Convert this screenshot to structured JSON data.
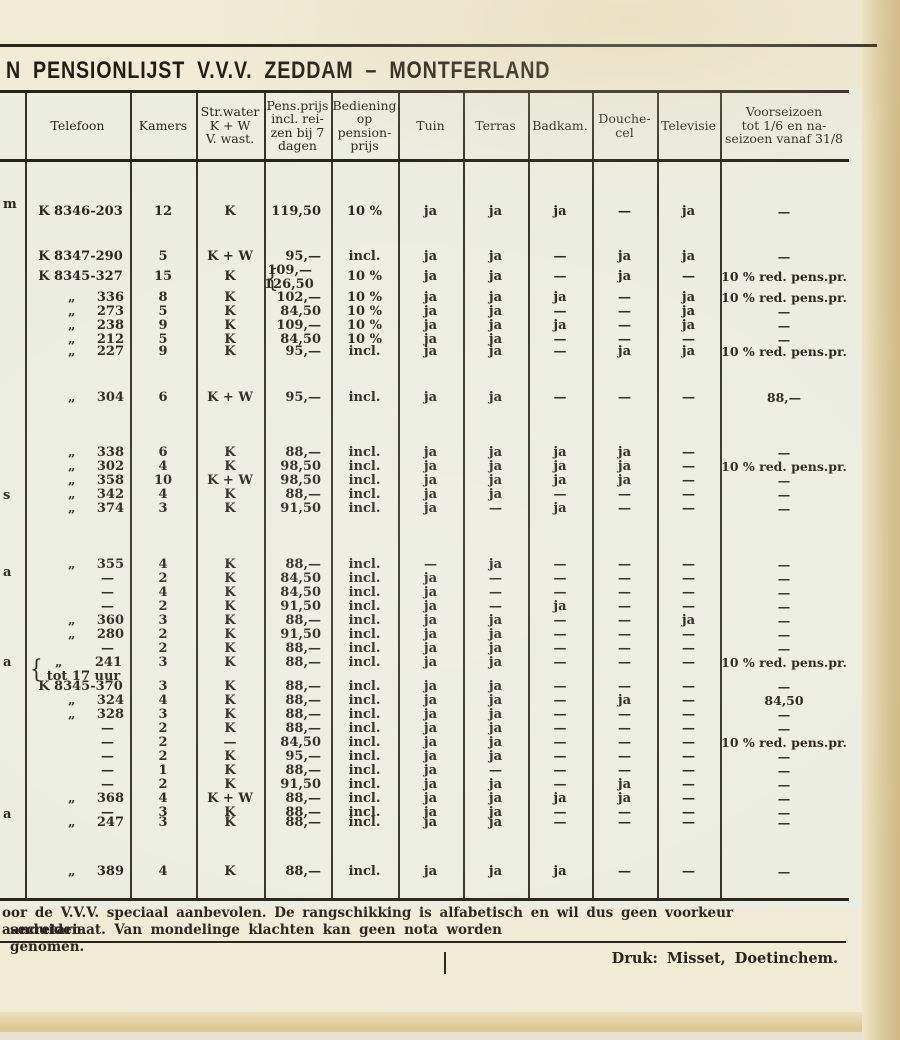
{
  "page": {
    "title": "N PENSIONLIJST V.V.V. ZEDDAM – MONTFERLAND",
    "footer_lines": [
      "oor de V.V.V. speciaal aanbevolen. De rangschikking is alfabetisch en wil dus geen voorkeur aanduiden.",
      "secretariaat. Van mondelinge klachten kan geen nota worden genomen."
    ],
    "printer_credit": "Druk: Misset, Doetinchem.",
    "left_margin_fragments": [
      "m",
      "s",
      "a",
      "a",
      "a"
    ]
  },
  "colors": {
    "ink": "#2a2620",
    "paper": "#f1ebd6",
    "table_background": "#ecede1",
    "page_edge_tan": "#d9c494"
  },
  "table": {
    "columns": [
      {
        "key": "tel",
        "label": "Telefoon"
      },
      {
        "key": "kamers",
        "label": "Kamers"
      },
      {
        "key": "water",
        "label": "Str.water\nK + W\nV. wast."
      },
      {
        "key": "prijs",
        "label": "Pens.prijs\nincl. rei-\nzen bij 7\ndagen"
      },
      {
        "key": "bediening",
        "label": "Bediening\nop\npension-\nprijs"
      },
      {
        "key": "tuin",
        "label": "Tuin"
      },
      {
        "key": "terras",
        "label": "Terras"
      },
      {
        "key": "badkam",
        "label": "Badkam."
      },
      {
        "key": "douche",
        "label": "Douche-\ncel"
      },
      {
        "key": "tv",
        "label": "Televisie"
      },
      {
        "key": "voorseizoen",
        "label": "Voorseizoen\ntot 1/6 en na-\nseizoen vanaf 31/8"
      }
    ],
    "rows": [
      {
        "tel": "K 8346-203",
        "kamers": "12",
        "water": "K",
        "prijs": "119,50",
        "bediening": "10 %",
        "tuin": "ja",
        "terras": "ja",
        "badkam": "ja",
        "douche": "—",
        "tv": "ja",
        "voorseizoen": "—"
      },
      {
        "tel": "K 8347-290",
        "kamers": "5",
        "water": "K + W",
        "prijs": "95,—",
        "bediening": "incl.",
        "tuin": "ja",
        "terras": "ja",
        "badkam": "—",
        "douche": "ja",
        "tv": "ja",
        "voorseizoen": "—"
      },
      {
        "tel": "K 8345-327",
        "kamers": "15",
        "water": "K",
        "prijs": "109,—\n126,50",
        "bediening": "10 %",
        "tuin": "ja",
        "terras": "ja",
        "badkam": "—",
        "douche": "ja",
        "tv": "—",
        "voorseizoen": "10 % red. pens.pr."
      },
      {
        "tel": "„ 336",
        "kamers": "8",
        "water": "K",
        "prijs": "102,—",
        "bediening": "10 %",
        "tuin": "ja",
        "terras": "ja",
        "badkam": "ja",
        "douche": "—",
        "tv": "ja",
        "voorseizoen": "10 % red. pens.pr."
      },
      {
        "tel": "„ 273",
        "kamers": "5",
        "water": "K",
        "prijs": "84,50",
        "bediening": "10 %",
        "tuin": "ja",
        "terras": "ja",
        "badkam": "—",
        "douche": "—",
        "tv": "ja",
        "voorseizoen": "—"
      },
      {
        "tel": "„ 238",
        "kamers": "9",
        "water": "K",
        "prijs": "109,—",
        "bediening": "10 %",
        "tuin": "ja",
        "terras": "ja",
        "badkam": "ja",
        "douche": "—",
        "tv": "ja",
        "voorseizoen": "—"
      },
      {
        "tel": "„ 212",
        "kamers": "5",
        "water": "K",
        "prijs": "84,50",
        "bediening": "10 %",
        "tuin": "ja",
        "terras": "ja",
        "badkam": "—",
        "douche": "—",
        "tv": "—",
        "voorseizoen": "—"
      },
      {
        "tel": "„ 227",
        "kamers": "9",
        "water": "K",
        "prijs": "95,—",
        "bediening": "incl.",
        "tuin": "ja",
        "terras": "ja",
        "badkam": "—",
        "douche": "ja",
        "tv": "ja",
        "voorseizoen": "10 % red. pens.pr."
      },
      {
        "tel": "„ 304",
        "kamers": "6",
        "water": "K + W",
        "prijs": "95,—",
        "bediening": "incl.",
        "tuin": "ja",
        "terras": "ja",
        "badkam": "—",
        "douche": "—",
        "tv": "—",
        "voorseizoen": "88,—"
      },
      {
        "tel": "„ 338",
        "kamers": "6",
        "water": "K",
        "prijs": "88,—",
        "bediening": "incl.",
        "tuin": "ja",
        "terras": "ja",
        "badkam": "ja",
        "douche": "ja",
        "tv": "—",
        "voorseizoen": "—"
      },
      {
        "tel": "„ 302",
        "kamers": "4",
        "water": "K",
        "prijs": "98,50",
        "bediening": "incl.",
        "tuin": "ja",
        "terras": "ja",
        "badkam": "ja",
        "douche": "ja",
        "tv": "—",
        "voorseizoen": "10 % red. pens.pr."
      },
      {
        "tel": "„ 358",
        "kamers": "10",
        "water": "K + W",
        "prijs": "98,50",
        "bediening": "incl.",
        "tuin": "ja",
        "terras": "ja",
        "badkam": "ja",
        "douche": "ja",
        "tv": "—",
        "voorseizoen": "—"
      },
      {
        "tel": "„ 342",
        "kamers": "4",
        "water": "K",
        "prijs": "88,—",
        "bediening": "incl.",
        "tuin": "ja",
        "terras": "ja",
        "badkam": "—",
        "douche": "—",
        "tv": "—",
        "voorseizoen": "—"
      },
      {
        "tel": "„ 374",
        "kamers": "3",
        "water": "K",
        "prijs": "91,50",
        "bediening": "incl.",
        "tuin": "ja",
        "terras": "—",
        "badkam": "ja",
        "douche": "—",
        "tv": "—",
        "voorseizoen": "—"
      },
      {
        "tel": "„ 355",
        "kamers": "4",
        "water": "K",
        "prijs": "88,—",
        "bediening": "incl.",
        "tuin": "—",
        "terras": "ja",
        "badkam": "—",
        "douche": "—",
        "tv": "—",
        "voorseizoen": "—"
      },
      {
        "tel": "—",
        "kamers": "2",
        "water": "K",
        "prijs": "84,50",
        "bediening": "incl.",
        "tuin": "ja",
        "terras": "—",
        "badkam": "—",
        "douche": "—",
        "tv": "—",
        "voorseizoen": "—"
      },
      {
        "tel": "—",
        "kamers": "4",
        "water": "K",
        "prijs": "84,50",
        "bediening": "incl.",
        "tuin": "ja",
        "terras": "—",
        "badkam": "—",
        "douche": "—",
        "tv": "—",
        "voorseizoen": "—"
      },
      {
        "tel": "—",
        "kamers": "2",
        "water": "K",
        "prijs": "91,50",
        "bediening": "incl.",
        "tuin": "ja",
        "terras": "—",
        "badkam": "ja",
        "douche": "—",
        "tv": "—",
        "voorseizoen": "—"
      },
      {
        "tel": "„ 360",
        "kamers": "3",
        "water": "K",
        "prijs": "88,—",
        "bediening": "incl.",
        "tuin": "ja",
        "terras": "ja",
        "badkam": "—",
        "douche": "—",
        "tv": "ja",
        "voorseizoen": "—"
      },
      {
        "tel": "„ 280",
        "kamers": "2",
        "water": "K",
        "prijs": "91,50",
        "bediening": "incl.",
        "tuin": "ja",
        "terras": "ja",
        "badkam": "—",
        "douche": "—",
        "tv": "—",
        "voorseizoen": "—"
      },
      {
        "tel": "—",
        "kamers": "2",
        "water": "K",
        "prijs": "88,—",
        "bediening": "incl.",
        "tuin": "ja",
        "terras": "ja",
        "badkam": "—",
        "douche": "—",
        "tv": "—",
        "voorseizoen": "—"
      },
      {
        "tel": "„ 241\ntot 17 uur",
        "kamers": "3",
        "water": "K",
        "prijs": "88,—",
        "bediening": "incl.",
        "tuin": "ja",
        "terras": "ja",
        "badkam": "—",
        "douche": "—",
        "tv": "—",
        "voorseizoen": "10 % red. pens.pr."
      },
      {
        "tel": "K 8345-370",
        "kamers": "3",
        "water": "K",
        "prijs": "88,—",
        "bediening": "incl.",
        "tuin": "ja",
        "terras": "ja",
        "badkam": "—",
        "douche": "—",
        "tv": "—",
        "voorseizoen": "—"
      },
      {
        "tel": "„ 324",
        "kamers": "4",
        "water": "K",
        "prijs": "88,—",
        "bediening": "incl.",
        "tuin": "ja",
        "terras": "ja",
        "badkam": "—",
        "douche": "ja",
        "tv": "—",
        "voorseizoen": "84,50"
      },
      {
        "tel": "„ 328",
        "kamers": "3",
        "water": "K",
        "prijs": "88,—",
        "bediening": "incl.",
        "tuin": "ja",
        "terras": "ja",
        "badkam": "—",
        "douche": "—",
        "tv": "—",
        "voorseizoen": "—"
      },
      {
        "tel": "—",
        "kamers": "2",
        "water": "K",
        "prijs": "88,—",
        "bediening": "incl.",
        "tuin": "ja",
        "terras": "ja",
        "badkam": "—",
        "douche": "—",
        "tv": "—",
        "voorseizoen": "—"
      },
      {
        "tel": "—",
        "kamers": "2",
        "water": "—",
        "prijs": "84,50",
        "bediening": "incl.",
        "tuin": "ja",
        "terras": "ja",
        "badkam": "—",
        "douche": "—",
        "tv": "—",
        "voorseizoen": "10 % red. pens.pr."
      },
      {
        "tel": "—",
        "kamers": "2",
        "water": "K",
        "prijs": "95,—",
        "bediening": "incl.",
        "tuin": "ja",
        "terras": "ja",
        "badkam": "—",
        "douche": "—",
        "tv": "—",
        "voorseizoen": "—"
      },
      {
        "tel": "—",
        "kamers": "1",
        "water": "K",
        "prijs": "88,—",
        "bediening": "incl.",
        "tuin": "ja",
        "terras": "—",
        "badkam": "—",
        "douche": "—",
        "tv": "—",
        "voorseizoen": "—"
      },
      {
        "tel": "—",
        "kamers": "2",
        "water": "K",
        "prijs": "91,50",
        "bediening": "incl.",
        "tuin": "ja",
        "terras": "ja",
        "badkam": "—",
        "douche": "ja",
        "tv": "—",
        "voorseizoen": "—"
      },
      {
        "tel": "„ 368",
        "kamers": "4",
        "water": "K + W",
        "prijs": "88,—",
        "bediening": "incl.",
        "tuin": "ja",
        "terras": "ja",
        "badkam": "ja",
        "douche": "ja",
        "tv": "—",
        "voorseizoen": "—"
      },
      {
        "tel": "—",
        "kamers": "3",
        "water": "K",
        "prijs": "88,—",
        "bediening": "incl.",
        "tuin": "ja",
        "terras": "ja",
        "badkam": "—",
        "douche": "—",
        "tv": "—",
        "voorseizoen": "—"
      },
      {
        "tel": "„ 247",
        "kamers": "3",
        "water": "K",
        "prijs": "88,—",
        "bediening": "incl.",
        "tuin": "ja",
        "terras": "ja",
        "badkam": "—",
        "douche": "—",
        "tv": "—",
        "voorseizoen": "—"
      },
      {
        "tel": "„ 389",
        "kamers": "4",
        "water": "K",
        "prijs": "88,—",
        "bediening": "incl.",
        "tuin": "ja",
        "terras": "ja",
        "badkam": "ja",
        "douche": "—",
        "tv": "—",
        "voorseizoen": "—"
      }
    ]
  }
}
